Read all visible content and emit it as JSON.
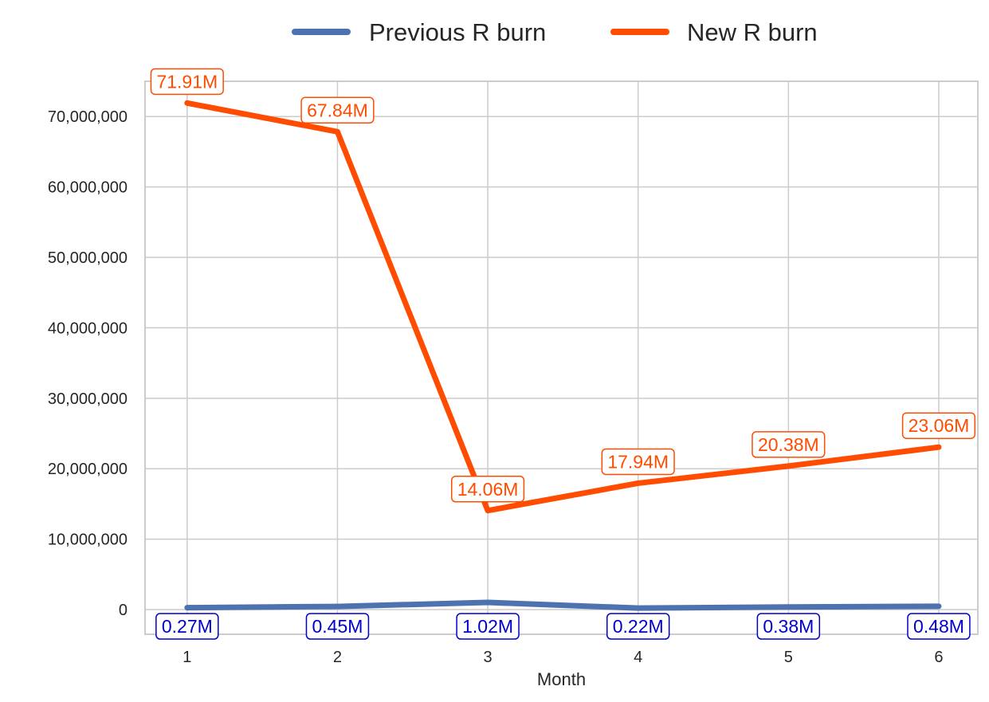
{
  "chart_data": {
    "type": "line",
    "x": [
      1,
      2,
      3,
      4,
      5,
      6
    ],
    "xlabel": "Month",
    "ylabel": "",
    "ylim": [
      -3500000,
      75000000
    ],
    "yticks": [
      0,
      10000000,
      20000000,
      30000000,
      40000000,
      50000000,
      60000000,
      70000000
    ],
    "ytick_labels": [
      "0",
      "10,000,000",
      "20,000,000",
      "30,000,000",
      "40,000,000",
      "50,000,000",
      "60,000,000",
      "70,000,000"
    ],
    "xtick_labels": [
      "1",
      "2",
      "3",
      "4",
      "5",
      "6"
    ],
    "grid": true,
    "legend_position": "top-center",
    "series": [
      {
        "name": "Previous R burn",
        "color": "#4c72b0",
        "label_color": "#0000cc",
        "values": [
          270000,
          450000,
          1020000,
          220000,
          380000,
          480000
        ],
        "labels": [
          "0.27M",
          "0.45M",
          "1.02M",
          "0.22M",
          "0.38M",
          "0.48M"
        ]
      },
      {
        "name": "New R burn",
        "color": "#ff4c00",
        "label_color": "#ff4c00",
        "values": [
          71910000,
          67840000,
          14060000,
          17940000,
          20380000,
          23060000
        ],
        "labels": [
          "71.91M",
          "67.84M",
          "14.06M",
          "17.94M",
          "20.38M",
          "23.06M"
        ]
      }
    ]
  }
}
